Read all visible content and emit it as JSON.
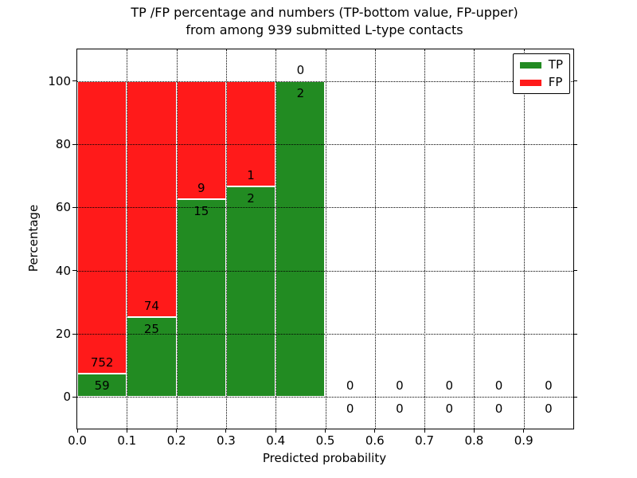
{
  "title": {
    "line1": "TP /FP percentage and numbers (TP-bottom value, FP-upper)",
    "line2": "from among 939 submitted L-type contacts"
  },
  "chart_data": {
    "type": "bar",
    "stacked": true,
    "title": "TP /FP percentage and numbers (TP-bottom value, FP-upper) from among 939 submitted L-type contacts",
    "xlabel": "Predicted probability",
    "ylabel": "Percentage",
    "bins": [
      0.0,
      0.1,
      0.2,
      0.3,
      0.4,
      0.5,
      0.6,
      0.7,
      0.8,
      0.9
    ],
    "bin_width": 0.1,
    "series": [
      {
        "name": "TP",
        "color": "#228B22",
        "counts": [
          59,
          25,
          15,
          2,
          2,
          0,
          0,
          0,
          0,
          0
        ]
      },
      {
        "name": "FP",
        "color": "#FF1A1A",
        "counts": [
          752,
          74,
          9,
          1,
          0,
          0,
          0,
          0,
          0,
          0
        ]
      }
    ],
    "bar_unit": "percentage of bin total",
    "xlim": [
      0.0,
      1.0
    ],
    "ylim": [
      -10,
      110
    ],
    "xticks": [
      "0.0",
      "0.1",
      "0.2",
      "0.3",
      "0.4",
      "0.5",
      "0.6",
      "0.7",
      "0.8",
      "0.9"
    ],
    "yticks": [
      0,
      20,
      40,
      60,
      80,
      100
    ],
    "grid": true,
    "grid_style": "dotted",
    "legend_position": "upper right",
    "edge_color": "#FFFFFF",
    "total_contacts": 939
  }
}
